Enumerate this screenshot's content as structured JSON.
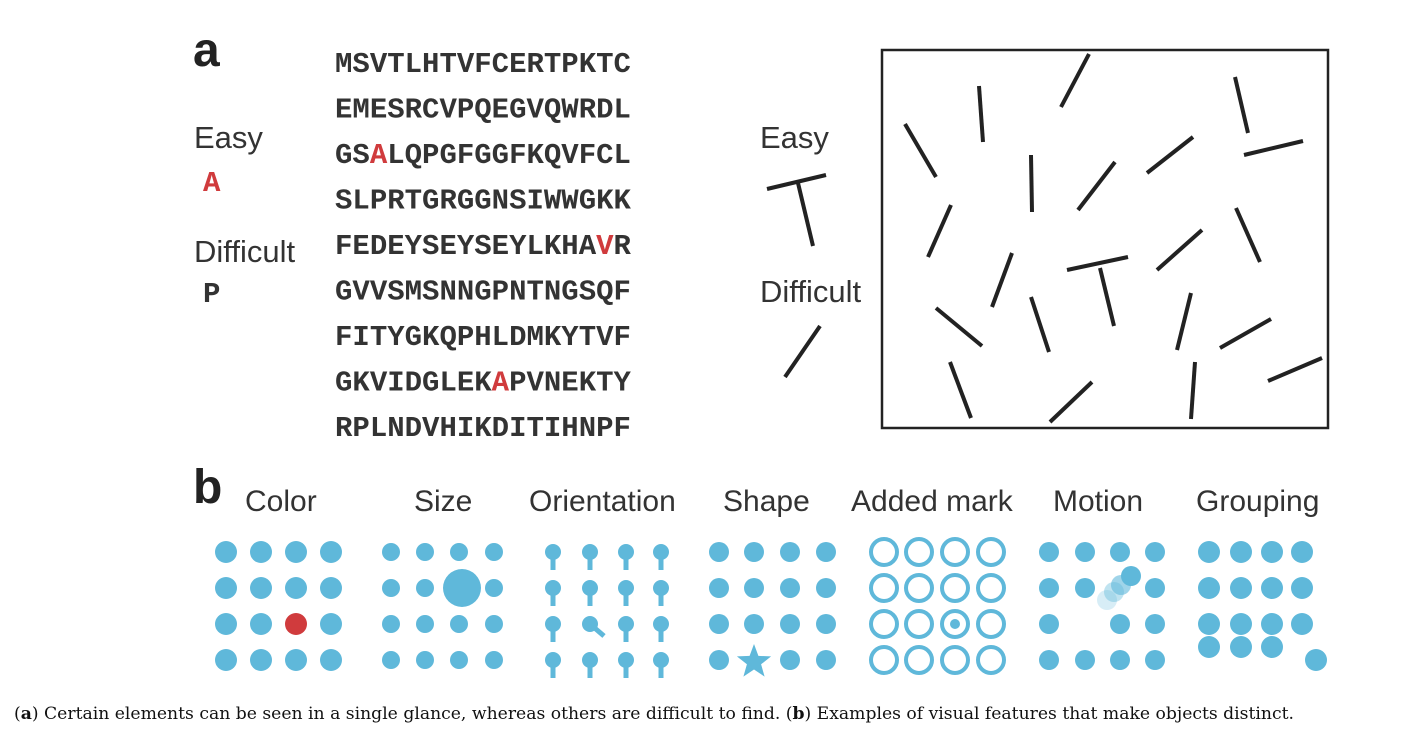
{
  "panel_a": {
    "letter": "a",
    "easy_label": "Easy",
    "easy_char": "A",
    "difficult_label": "Difficult",
    "difficult_char": "P",
    "sequence_lines": [
      "MSVTLHTVFCERTPKTC",
      "EMESRCVPQEGVQWRDL",
      "GSALQPGFGGFKQVFCL",
      "SLPRTGRGGNSIWWGKK",
      "FEDEYSEYSEYLKHAVR",
      "GVVSMSNNGPNTNGSQF",
      "FITYGKQPHLDMKYTVF",
      "GKVIDGLEKAPVNEKTY",
      "RPLNDVHIKDITIHNPF"
    ],
    "highlight_positions": [
      [
        2,
        2
      ],
      [
        4,
        15
      ],
      [
        7,
        9
      ]
    ],
    "easy_label_2": "Easy",
    "difficult_label_2": "Difficult"
  },
  "panel_b": {
    "letter": "b",
    "features": [
      "Color",
      "Size",
      "Orientation",
      "Shape",
      "Added mark",
      "Motion",
      "Grouping"
    ]
  },
  "colors": {
    "blue": "#5fb8da",
    "red": "#d03b3d",
    "text": "#333333",
    "stroke": "#222222"
  },
  "caption": {
    "a_letter": "a",
    "a_text": ") Certain elements can be seen in a single glance, whereas others are difficult to find. (",
    "b_letter": "b",
    "b_text": ") Examples of visual features that make objects distinct."
  }
}
